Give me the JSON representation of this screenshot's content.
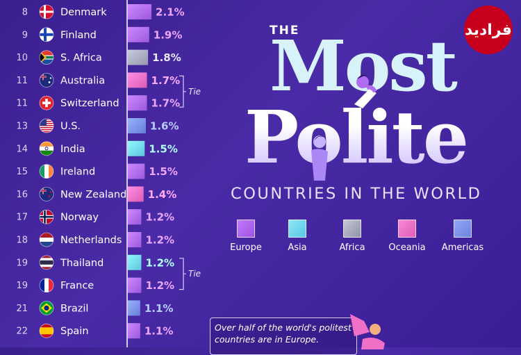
{
  "title": {
    "the": "THE",
    "most": "Most",
    "polite": "Polite",
    "subtitle": "COUNTRIES IN THE WORLD"
  },
  "legend": [
    {
      "name": "Europe",
      "color": "#b06cf0"
    },
    {
      "name": "Asia",
      "color": "#72d9f0"
    },
    {
      "name": "Africa",
      "color": "#a9adbf"
    },
    {
      "name": "Oceania",
      "color": "#f070c8"
    },
    {
      "name": "Americas",
      "color": "#7a93ea"
    }
  ],
  "callout": "Over half of the world's politest countries are in Europe.",
  "logo_text": "فرادید",
  "tie_label": "Tie",
  "chart_data": {
    "type": "bar",
    "orientation": "horizontal",
    "value_unit": "%",
    "rows": [
      {
        "rank": "8",
        "country": "Denmark",
        "flag": "denmark",
        "value": 2.1,
        "label": "2.1%",
        "region": "Europe"
      },
      {
        "rank": "9",
        "country": "Finland",
        "flag": "finland",
        "value": 1.9,
        "label": "1.9%",
        "region": "Europe"
      },
      {
        "rank": "10",
        "country": "S. Africa",
        "flag": "south-africa",
        "value": 1.8,
        "label": "1.8%",
        "region": "Africa"
      },
      {
        "rank": "11",
        "country": "Australia",
        "flag": "australia",
        "value": 1.7,
        "label": "1.7%",
        "region": "Oceania"
      },
      {
        "rank": "11",
        "country": "Switzerland",
        "flag": "switzerland",
        "value": 1.7,
        "label": "1.7%",
        "region": "Europe"
      },
      {
        "rank": "13",
        "country": "U.S.",
        "flag": "usa",
        "value": 1.6,
        "label": "1.6%",
        "region": "Americas"
      },
      {
        "rank": "14",
        "country": "India",
        "flag": "india",
        "value": 1.5,
        "label": "1.5%",
        "region": "Asia"
      },
      {
        "rank": "15",
        "country": "Ireland",
        "flag": "ireland",
        "value": 1.5,
        "label": "1.5%",
        "region": "Europe"
      },
      {
        "rank": "16",
        "country": "New Zealand",
        "flag": "new-zealand",
        "value": 1.4,
        "label": "1.4%",
        "region": "Oceania"
      },
      {
        "rank": "17",
        "country": "Norway",
        "flag": "norway",
        "value": 1.2,
        "label": "1.2%",
        "region": "Europe"
      },
      {
        "rank": "18",
        "country": "Netherlands",
        "flag": "netherlands",
        "value": 1.2,
        "label": "1.2%",
        "region": "Europe"
      },
      {
        "rank": "19",
        "country": "Thailand",
        "flag": "thailand",
        "value": 1.2,
        "label": "1.2%",
        "region": "Asia"
      },
      {
        "rank": "19",
        "country": "France",
        "flag": "france",
        "value": 1.2,
        "label": "1.2%",
        "region": "Europe"
      },
      {
        "rank": "21",
        "country": "Brazil",
        "flag": "brazil",
        "value": 1.1,
        "label": "1.1%",
        "region": "Americas"
      },
      {
        "rank": "22",
        "country": "Spain",
        "flag": "spain",
        "value": 1.1,
        "label": "1.1%",
        "region": "Europe"
      }
    ],
    "ties": [
      [
        3,
        4
      ],
      [
        11,
        12
      ]
    ],
    "grid": false
  }
}
